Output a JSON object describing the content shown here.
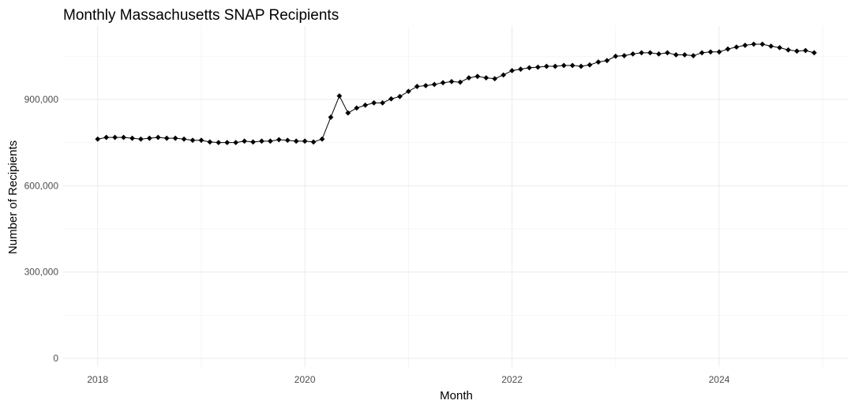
{
  "chart_data": {
    "type": "line",
    "title": "Monthly Massachusetts SNAP Recipients",
    "xlabel": "Month",
    "ylabel": "Number of Recipients",
    "x_ticks": [
      "2018",
      "2020",
      "2022",
      "2024"
    ],
    "y_ticks": [
      "0",
      "300,000",
      "600,000",
      "900,000"
    ],
    "y_tick_values": [
      0,
      300000,
      600000,
      900000
    ],
    "ylim": [
      -30000,
      1155000
    ],
    "xlim": [
      "2017-09",
      "2025-04"
    ],
    "grid": true,
    "legend": "none",
    "series": [
      {
        "x": [
          "2018-01",
          "2018-02",
          "2018-03",
          "2018-04",
          "2018-05",
          "2018-06",
          "2018-07",
          "2018-08",
          "2018-09",
          "2018-10",
          "2018-11",
          "2018-12",
          "2019-01",
          "2019-02",
          "2019-03",
          "2019-04",
          "2019-05",
          "2019-06",
          "2019-07",
          "2019-08",
          "2019-09",
          "2019-10",
          "2019-11",
          "2019-12",
          "2020-01",
          "2020-02",
          "2020-03",
          "2020-04",
          "2020-05",
          "2020-06",
          "2020-07",
          "2020-08",
          "2020-09",
          "2020-10",
          "2020-11",
          "2020-12",
          "2021-01",
          "2021-02",
          "2021-03",
          "2021-04",
          "2021-05",
          "2021-06",
          "2021-07",
          "2021-08",
          "2021-09",
          "2021-10",
          "2021-11",
          "2021-12",
          "2022-01",
          "2022-02",
          "2022-03",
          "2022-04",
          "2022-05",
          "2022-06",
          "2022-07",
          "2022-08",
          "2022-09",
          "2022-10",
          "2022-11",
          "2022-12",
          "2023-01",
          "2023-02",
          "2023-03",
          "2023-04",
          "2023-05",
          "2023-06",
          "2023-07",
          "2023-08",
          "2023-09",
          "2023-10",
          "2023-11",
          "2023-12",
          "2024-01",
          "2024-02",
          "2024-03",
          "2024-04",
          "2024-05",
          "2024-06",
          "2024-07",
          "2024-08",
          "2024-09",
          "2024-10",
          "2024-11",
          "2024-12"
        ],
        "values": [
          762000,
          768000,
          768000,
          768000,
          765000,
          762000,
          765000,
          768000,
          765000,
          765000,
          762000,
          758000,
          758000,
          752000,
          750000,
          750000,
          750000,
          755000,
          752000,
          755000,
          755000,
          760000,
          758000,
          755000,
          755000,
          752000,
          762000,
          838000,
          912000,
          853000,
          870000,
          880000,
          888000,
          888000,
          902000,
          910000,
          928000,
          945000,
          948000,
          952000,
          958000,
          962000,
          960000,
          975000,
          980000,
          975000,
          972000,
          985000,
          1000000,
          1005000,
          1010000,
          1012000,
          1015000,
          1015000,
          1018000,
          1018000,
          1015000,
          1020000,
          1030000,
          1035000,
          1050000,
          1052000,
          1058000,
          1062000,
          1062000,
          1058000,
          1062000,
          1055000,
          1055000,
          1052000,
          1062000,
          1065000,
          1065000,
          1075000,
          1082000,
          1088000,
          1092000,
          1092000,
          1085000,
          1080000,
          1072000,
          1068000,
          1070000,
          1062000
        ]
      }
    ]
  }
}
